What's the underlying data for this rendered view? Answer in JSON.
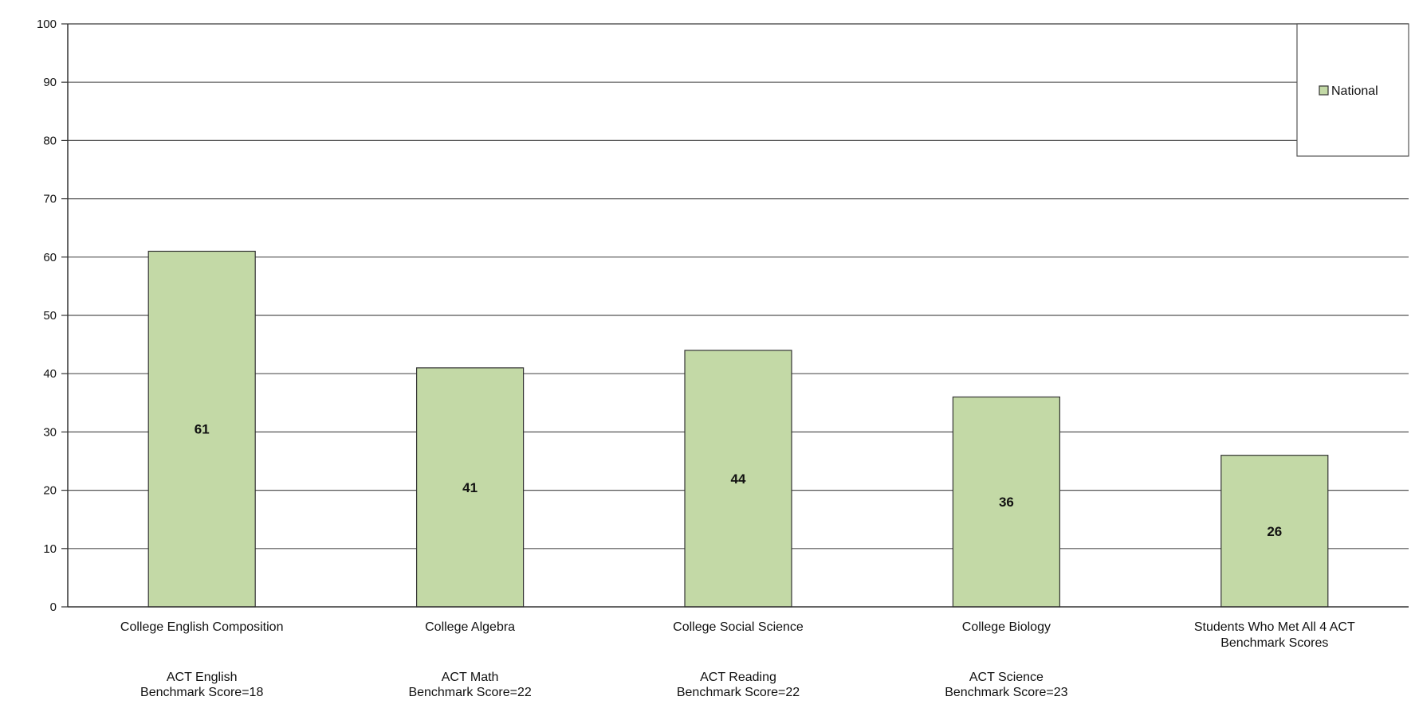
{
  "chart_data": {
    "type": "bar",
    "title": "",
    "xlabel": "",
    "ylabel": "",
    "ylim": [
      0,
      100
    ],
    "yticks": [
      0,
      10,
      20,
      30,
      40,
      50,
      60,
      70,
      80,
      90,
      100
    ],
    "grid": true,
    "legend": {
      "position": "top-right",
      "entries": [
        "National"
      ]
    },
    "colors": {
      "bar": "#c3d9a6",
      "bar_stroke": "#333333",
      "grid": "#555555"
    },
    "categories": [
      {
        "label_lines": [
          "College English Composition"
        ],
        "sub_lines": [
          "ACT English",
          "Benchmark Score=18"
        ]
      },
      {
        "label_lines": [
          "College Algebra"
        ],
        "sub_lines": [
          "ACT Math",
          "Benchmark Score=22"
        ]
      },
      {
        "label_lines": [
          "College Social Science"
        ],
        "sub_lines": [
          "ACT Reading",
          "Benchmark Score=22"
        ]
      },
      {
        "label_lines": [
          "College Biology"
        ],
        "sub_lines": [
          "ACT Science",
          "Benchmark Score=23"
        ]
      },
      {
        "label_lines": [
          "Students Who Met All 4 ACT",
          "Benchmark Scores"
        ],
        "sub_lines": []
      }
    ],
    "series": [
      {
        "name": "National",
        "values": [
          61,
          41,
          44,
          36,
          26
        ]
      }
    ]
  }
}
